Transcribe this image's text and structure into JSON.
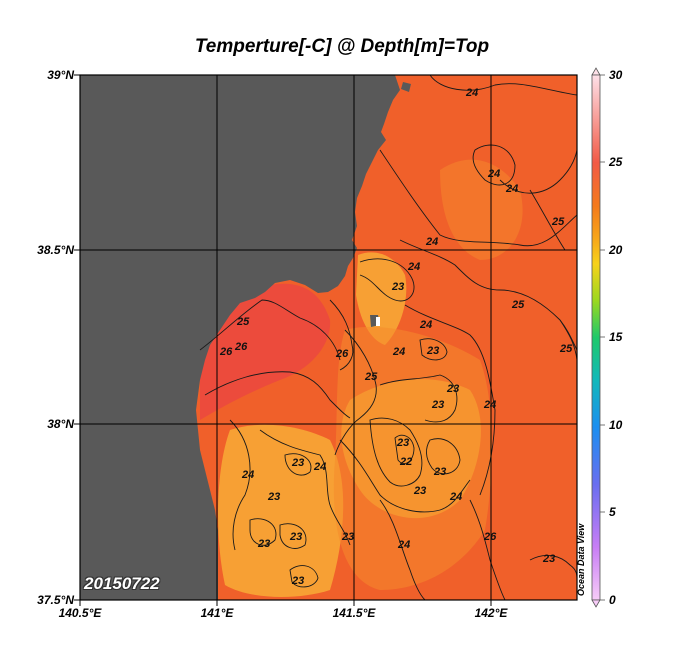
{
  "title": "Temperture[-C] @ Depth[m]=Top",
  "date_stamp": "20150722",
  "watermark": "Ocean Data View",
  "latitude_labels": [
    "39°N",
    "38.5°N",
    "38°N",
    "37.5°N"
  ],
  "longitude_labels": [
    "140.5°E",
    "141°E",
    "141.5°E",
    "142°E"
  ],
  "colorbar": {
    "ticks": [
      "30",
      "25",
      "20",
      "15",
      "10",
      "5",
      "0"
    ],
    "stops": [
      "#fde0e8",
      "#f25a46",
      "#f47a1c",
      "#f7a51a",
      "#f7d21a",
      "#9bd81e",
      "#1fc96a",
      "#12b9b9",
      "#1b8ff0",
      "#6a6ef0",
      "#c87ef5",
      "#f6cbf7"
    ]
  },
  "colors": {
    "land": "#595959",
    "sea_warm": "#f0602a",
    "sea_mid": "#f58a2c",
    "sea_cool": "#f7a034",
    "coast_warm": "#ec4b3c"
  },
  "contour_labels": [
    {
      "value": "24"
    },
    {
      "value": "24"
    },
    {
      "value": "24"
    },
    {
      "value": "25"
    },
    {
      "value": "24"
    },
    {
      "value": "24"
    },
    {
      "value": "23"
    },
    {
      "value": "25"
    },
    {
      "value": "24"
    },
    {
      "value": "25"
    },
    {
      "value": "26"
    },
    {
      "value": "26"
    },
    {
      "value": "23"
    },
    {
      "value": "26"
    },
    {
      "value": "25"
    },
    {
      "value": "24"
    },
    {
      "value": "23"
    },
    {
      "value": "23"
    },
    {
      "value": "24"
    },
    {
      "value": "23"
    },
    {
      "value": "22"
    },
    {
      "value": "23"
    },
    {
      "value": "23"
    },
    {
      "value": "23"
    },
    {
      "value": "24"
    },
    {
      "value": "24"
    },
    {
      "value": "23"
    },
    {
      "value": "24"
    },
    {
      "value": "23"
    },
    {
      "value": "23"
    },
    {
      "value": "23"
    },
    {
      "value": "24"
    },
    {
      "value": "26"
    },
    {
      "value": "23"
    },
    {
      "value": "23"
    },
    {
      "value": "25"
    }
  ]
}
